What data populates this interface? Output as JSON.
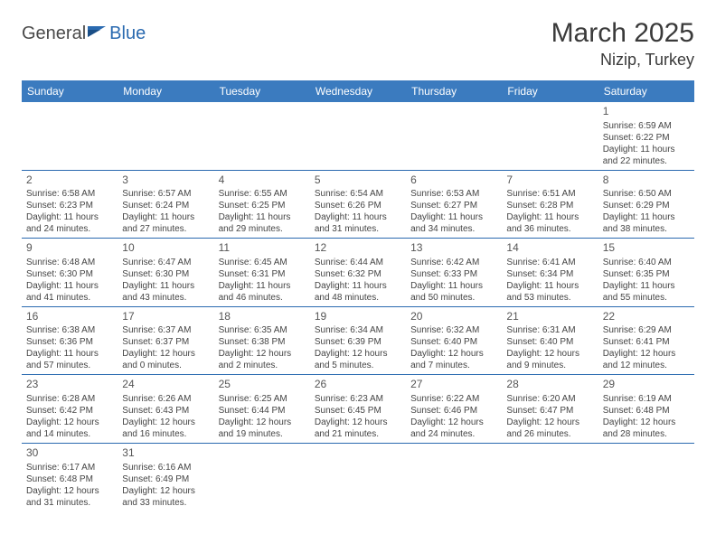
{
  "logo": {
    "text1": "General",
    "text2": "Blue"
  },
  "title": "March 2025",
  "location": "Nizip, Turkey",
  "day_names": [
    "Sunday",
    "Monday",
    "Tuesday",
    "Wednesday",
    "Thursday",
    "Friday",
    "Saturday"
  ],
  "colors": {
    "header_bg": "#3b7bbf",
    "border": "#2a6ab0",
    "text": "#333333"
  },
  "weeks": [
    [
      null,
      null,
      null,
      null,
      null,
      null,
      {
        "n": "1",
        "sunrise": "Sunrise: 6:59 AM",
        "sunset": "Sunset: 6:22 PM",
        "daylight": "Daylight: 11 hours and 22 minutes."
      }
    ],
    [
      {
        "n": "2",
        "sunrise": "Sunrise: 6:58 AM",
        "sunset": "Sunset: 6:23 PM",
        "daylight": "Daylight: 11 hours and 24 minutes."
      },
      {
        "n": "3",
        "sunrise": "Sunrise: 6:57 AM",
        "sunset": "Sunset: 6:24 PM",
        "daylight": "Daylight: 11 hours and 27 minutes."
      },
      {
        "n": "4",
        "sunrise": "Sunrise: 6:55 AM",
        "sunset": "Sunset: 6:25 PM",
        "daylight": "Daylight: 11 hours and 29 minutes."
      },
      {
        "n": "5",
        "sunrise": "Sunrise: 6:54 AM",
        "sunset": "Sunset: 6:26 PM",
        "daylight": "Daylight: 11 hours and 31 minutes."
      },
      {
        "n": "6",
        "sunrise": "Sunrise: 6:53 AM",
        "sunset": "Sunset: 6:27 PM",
        "daylight": "Daylight: 11 hours and 34 minutes."
      },
      {
        "n": "7",
        "sunrise": "Sunrise: 6:51 AM",
        "sunset": "Sunset: 6:28 PM",
        "daylight": "Daylight: 11 hours and 36 minutes."
      },
      {
        "n": "8",
        "sunrise": "Sunrise: 6:50 AM",
        "sunset": "Sunset: 6:29 PM",
        "daylight": "Daylight: 11 hours and 38 minutes."
      }
    ],
    [
      {
        "n": "9",
        "sunrise": "Sunrise: 6:48 AM",
        "sunset": "Sunset: 6:30 PM",
        "daylight": "Daylight: 11 hours and 41 minutes."
      },
      {
        "n": "10",
        "sunrise": "Sunrise: 6:47 AM",
        "sunset": "Sunset: 6:30 PM",
        "daylight": "Daylight: 11 hours and 43 minutes."
      },
      {
        "n": "11",
        "sunrise": "Sunrise: 6:45 AM",
        "sunset": "Sunset: 6:31 PM",
        "daylight": "Daylight: 11 hours and 46 minutes."
      },
      {
        "n": "12",
        "sunrise": "Sunrise: 6:44 AM",
        "sunset": "Sunset: 6:32 PM",
        "daylight": "Daylight: 11 hours and 48 minutes."
      },
      {
        "n": "13",
        "sunrise": "Sunrise: 6:42 AM",
        "sunset": "Sunset: 6:33 PM",
        "daylight": "Daylight: 11 hours and 50 minutes."
      },
      {
        "n": "14",
        "sunrise": "Sunrise: 6:41 AM",
        "sunset": "Sunset: 6:34 PM",
        "daylight": "Daylight: 11 hours and 53 minutes."
      },
      {
        "n": "15",
        "sunrise": "Sunrise: 6:40 AM",
        "sunset": "Sunset: 6:35 PM",
        "daylight": "Daylight: 11 hours and 55 minutes."
      }
    ],
    [
      {
        "n": "16",
        "sunrise": "Sunrise: 6:38 AM",
        "sunset": "Sunset: 6:36 PM",
        "daylight": "Daylight: 11 hours and 57 minutes."
      },
      {
        "n": "17",
        "sunrise": "Sunrise: 6:37 AM",
        "sunset": "Sunset: 6:37 PM",
        "daylight": "Daylight: 12 hours and 0 minutes."
      },
      {
        "n": "18",
        "sunrise": "Sunrise: 6:35 AM",
        "sunset": "Sunset: 6:38 PM",
        "daylight": "Daylight: 12 hours and 2 minutes."
      },
      {
        "n": "19",
        "sunrise": "Sunrise: 6:34 AM",
        "sunset": "Sunset: 6:39 PM",
        "daylight": "Daylight: 12 hours and 5 minutes."
      },
      {
        "n": "20",
        "sunrise": "Sunrise: 6:32 AM",
        "sunset": "Sunset: 6:40 PM",
        "daylight": "Daylight: 12 hours and 7 minutes."
      },
      {
        "n": "21",
        "sunrise": "Sunrise: 6:31 AM",
        "sunset": "Sunset: 6:40 PM",
        "daylight": "Daylight: 12 hours and 9 minutes."
      },
      {
        "n": "22",
        "sunrise": "Sunrise: 6:29 AM",
        "sunset": "Sunset: 6:41 PM",
        "daylight": "Daylight: 12 hours and 12 minutes."
      }
    ],
    [
      {
        "n": "23",
        "sunrise": "Sunrise: 6:28 AM",
        "sunset": "Sunset: 6:42 PM",
        "daylight": "Daylight: 12 hours and 14 minutes."
      },
      {
        "n": "24",
        "sunrise": "Sunrise: 6:26 AM",
        "sunset": "Sunset: 6:43 PM",
        "daylight": "Daylight: 12 hours and 16 minutes."
      },
      {
        "n": "25",
        "sunrise": "Sunrise: 6:25 AM",
        "sunset": "Sunset: 6:44 PM",
        "daylight": "Daylight: 12 hours and 19 minutes."
      },
      {
        "n": "26",
        "sunrise": "Sunrise: 6:23 AM",
        "sunset": "Sunset: 6:45 PM",
        "daylight": "Daylight: 12 hours and 21 minutes."
      },
      {
        "n": "27",
        "sunrise": "Sunrise: 6:22 AM",
        "sunset": "Sunset: 6:46 PM",
        "daylight": "Daylight: 12 hours and 24 minutes."
      },
      {
        "n": "28",
        "sunrise": "Sunrise: 6:20 AM",
        "sunset": "Sunset: 6:47 PM",
        "daylight": "Daylight: 12 hours and 26 minutes."
      },
      {
        "n": "29",
        "sunrise": "Sunrise: 6:19 AM",
        "sunset": "Sunset: 6:48 PM",
        "daylight": "Daylight: 12 hours and 28 minutes."
      }
    ],
    [
      {
        "n": "30",
        "sunrise": "Sunrise: 6:17 AM",
        "sunset": "Sunset: 6:48 PM",
        "daylight": "Daylight: 12 hours and 31 minutes."
      },
      {
        "n": "31",
        "sunrise": "Sunrise: 6:16 AM",
        "sunset": "Sunset: 6:49 PM",
        "daylight": "Daylight: 12 hours and 33 minutes."
      },
      null,
      null,
      null,
      null,
      null
    ]
  ]
}
